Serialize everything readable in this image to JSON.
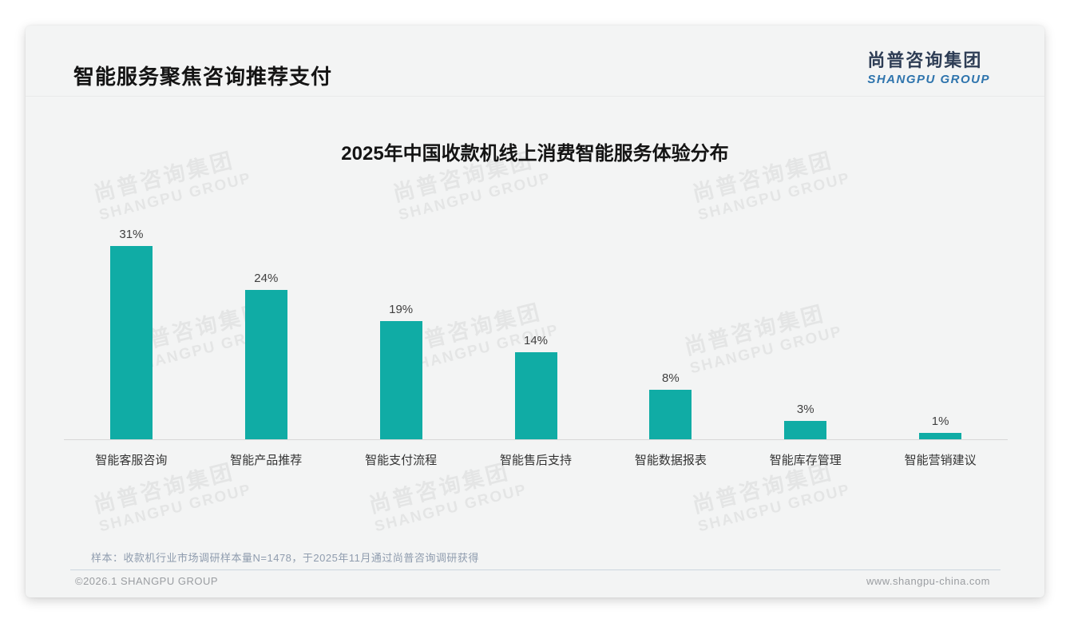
{
  "header": {
    "title": "智能服务聚焦咨询推荐支付",
    "logo": {
      "cn": "尚普咨询集团",
      "en": "SHANGPU GROUP"
    }
  },
  "chart_data": {
    "type": "bar",
    "title": "2025年中国收款机线上消费智能服务体验分布",
    "categories": [
      "智能客服咨询",
      "智能产品推荐",
      "智能支付流程",
      "智能售后支持",
      "智能数据报表",
      "智能库存管理",
      "智能营销建议"
    ],
    "values": [
      31,
      24,
      19,
      14,
      8,
      3,
      1
    ],
    "value_labels": [
      "31%",
      "24%",
      "19%",
      "14%",
      "8%",
      "3%",
      "1%"
    ],
    "unit": "%",
    "ylim": [
      0,
      31
    ],
    "grid": false,
    "legend": "none",
    "bar_color": "#10aca5"
  },
  "watermark": {
    "line1": "尚普咨询集团",
    "line2": "SHANGPU GROUP"
  },
  "footnote": "样本：收款机行业市场调研样本量N=1478，于2025年11月通过尚普咨询调研获得",
  "footer": {
    "copyright": "©2026.1 SHANGPU GROUP",
    "website": "www.shangpu-china.com"
  },
  "colors": {
    "bar": "#10aca5",
    "logo_navy": "#2e3d55",
    "logo_blue": "#2e74ad",
    "slide_bg": "#f3f4f4"
  }
}
